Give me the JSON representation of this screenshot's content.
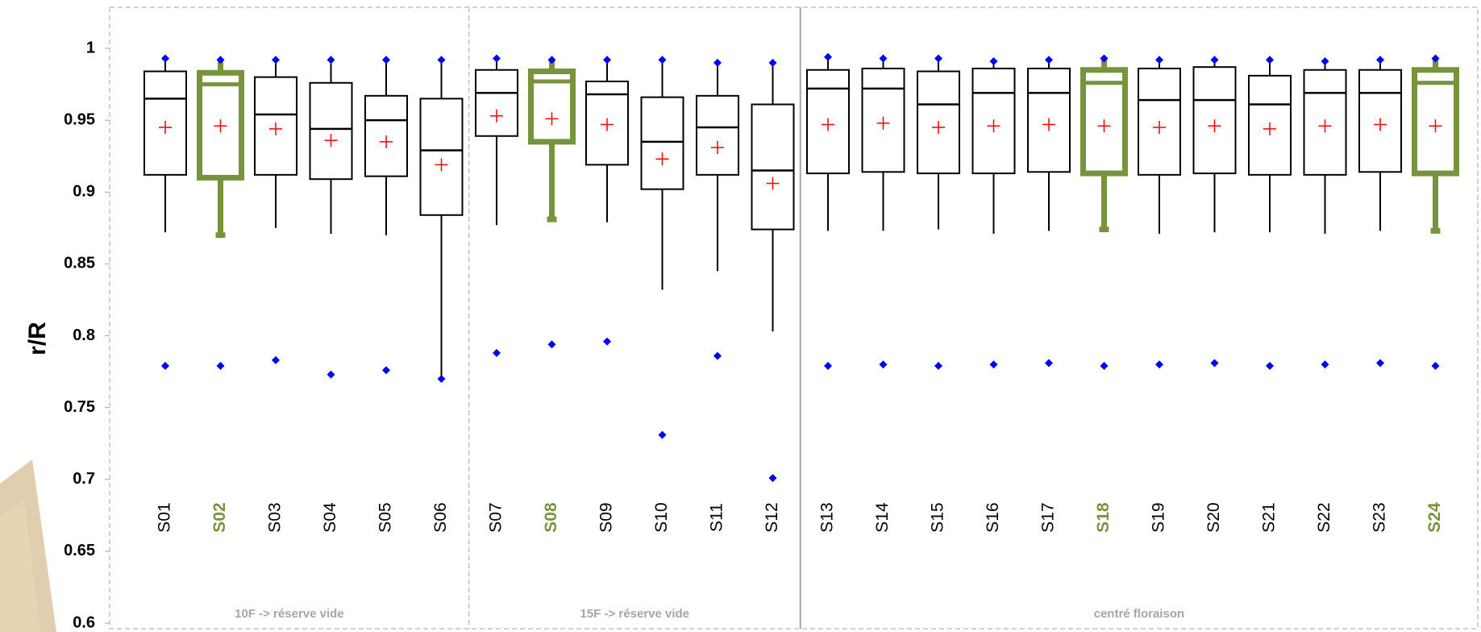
{
  "chart_data": {
    "type": "box",
    "ylabel": "r/R",
    "ylim": [
      0.6,
      1.0
    ],
    "yticks": [
      0.6,
      0.65,
      0.7,
      0.75,
      0.8,
      0.85,
      0.9,
      0.95,
      1
    ],
    "box_color": "#000000",
    "mean_color": "#ff0000",
    "outlier_color": "#0000ff",
    "groups": [
      {
        "name": "10F -> réserve vide",
        "categories": [
          "S01",
          "S02",
          "S03",
          "S04",
          "S05",
          "S06"
        ],
        "colors": [
          "#000000",
          "#77933c",
          "#000000",
          "#000000",
          "#000000",
          "#000000"
        ],
        "min": [
          0.779,
          0.779,
          0.783,
          0.773,
          0.776,
          0.77
        ],
        "whisker_low": [
          0.872,
          0.87,
          0.875,
          0.871,
          0.87,
          0.77
        ],
        "q1": [
          0.912,
          0.91,
          0.912,
          0.909,
          0.911,
          0.884
        ],
        "median": [
          0.965,
          0.975,
          0.954,
          0.944,
          0.95,
          0.929
        ],
        "q3": [
          0.984,
          0.983,
          0.98,
          0.976,
          0.967,
          0.965
        ],
        "max": [
          0.993,
          0.992,
          0.992,
          0.992,
          0.992,
          0.992
        ],
        "mean": [
          0.945,
          0.946,
          0.944,
          0.936,
          0.935,
          0.919
        ]
      },
      {
        "name": "15F -> réserve vide",
        "categories": [
          "S07",
          "S08",
          "S09",
          "S10",
          "S11",
          "S12"
        ],
        "colors": [
          "#000000",
          "#77933c",
          "#000000",
          "#000000",
          "#000000",
          "#000000"
        ],
        "min": [
          0.788,
          0.794,
          0.796,
          0.731,
          0.786,
          0.701
        ],
        "whisker_low": [
          0.877,
          0.881,
          0.879,
          0.832,
          0.845,
          0.803
        ],
        "q1": [
          0.939,
          0.935,
          0.919,
          0.902,
          0.912,
          0.874
        ],
        "median": [
          0.969,
          0.977,
          0.968,
          0.935,
          0.945,
          0.915
        ],
        "q3": [
          0.985,
          0.984,
          0.977,
          0.966,
          0.967,
          0.961
        ],
        "max": [
          0.993,
          0.992,
          0.992,
          0.992,
          0.99,
          0.99
        ],
        "mean": [
          0.953,
          0.951,
          0.947,
          0.923,
          0.931,
          0.906
        ]
      },
      {
        "name": "centré floraison",
        "categories": [
          "S13",
          "S14",
          "S15",
          "S16",
          "S17",
          "S18",
          "S19",
          "S20",
          "S21",
          "S22",
          "S23",
          "S24"
        ],
        "colors": [
          "#000000",
          "#000000",
          "#000000",
          "#000000",
          "#000000",
          "#77933c",
          "#000000",
          "#000000",
          "#000000",
          "#000000",
          "#000000",
          "#77933c"
        ],
        "min": [
          0.779,
          0.78,
          0.779,
          0.78,
          0.781,
          0.779,
          0.78,
          0.781,
          0.779,
          0.78,
          0.781,
          0.779
        ],
        "whisker_low": [
          0.873,
          0.873,
          0.874,
          0.871,
          0.873,
          0.874,
          0.871,
          0.872,
          0.872,
          0.871,
          0.873,
          0.873
        ],
        "q1": [
          0.913,
          0.914,
          0.913,
          0.913,
          0.914,
          0.913,
          0.912,
          0.913,
          0.912,
          0.912,
          0.914,
          0.913
        ],
        "median": [
          0.972,
          0.972,
          0.961,
          0.969,
          0.969,
          0.976,
          0.964,
          0.964,
          0.961,
          0.969,
          0.969,
          0.976
        ],
        "q3": [
          0.985,
          0.986,
          0.984,
          0.986,
          0.986,
          0.985,
          0.986,
          0.987,
          0.981,
          0.985,
          0.985,
          0.985
        ],
        "max": [
          0.994,
          0.993,
          0.993,
          0.991,
          0.992,
          0.993,
          0.992,
          0.992,
          0.992,
          0.991,
          0.992,
          0.993
        ],
        "mean": [
          0.947,
          0.948,
          0.945,
          0.946,
          0.947,
          0.946,
          0.945,
          0.946,
          0.944,
          0.946,
          0.947,
          0.946
        ]
      }
    ]
  }
}
